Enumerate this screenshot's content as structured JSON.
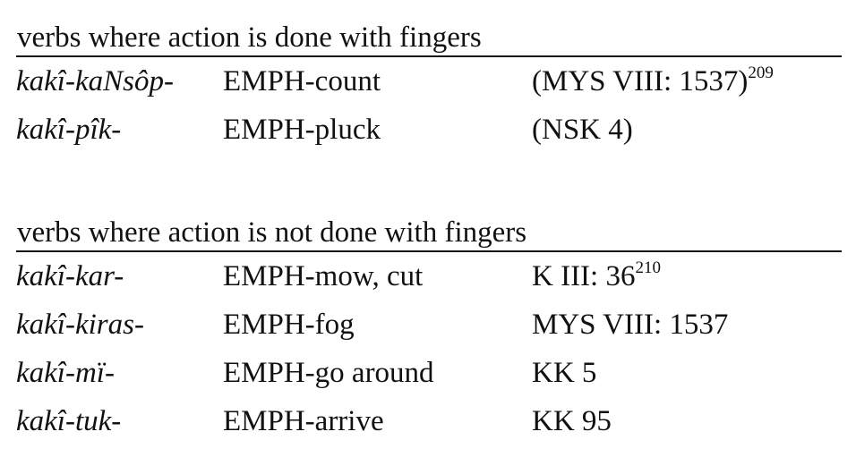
{
  "sections": [
    {
      "heading": "verbs where action is done with fingers",
      "rows": [
        {
          "verb": "kakî-kaNsôp-",
          "gloss": "EMPH-count",
          "source": "(MYS VIII: 1537)",
          "note": "209"
        },
        {
          "verb": "kakî-pîk-",
          "gloss": "EMPH-pluck",
          "source": "(NSK 4)",
          "note": ""
        }
      ]
    },
    {
      "heading": "verbs where action is not done with fingers",
      "rows": [
        {
          "verb": "kakî-kar-",
          "gloss": "EMPH-mow, cut",
          "source": "K III: 36",
          "note": "210"
        },
        {
          "verb": "kakî-kiras-",
          "gloss": "EMPH-fog",
          "source": "MYS VIII: 1537",
          "note": ""
        },
        {
          "verb": "kakî-mï-",
          "gloss": "EMPH-go around",
          "source": "KK 5",
          "note": ""
        },
        {
          "verb": "kakî-tuk-",
          "gloss": "EMPH-arrive",
          "source": "KK 95",
          "note": ""
        }
      ]
    }
  ]
}
